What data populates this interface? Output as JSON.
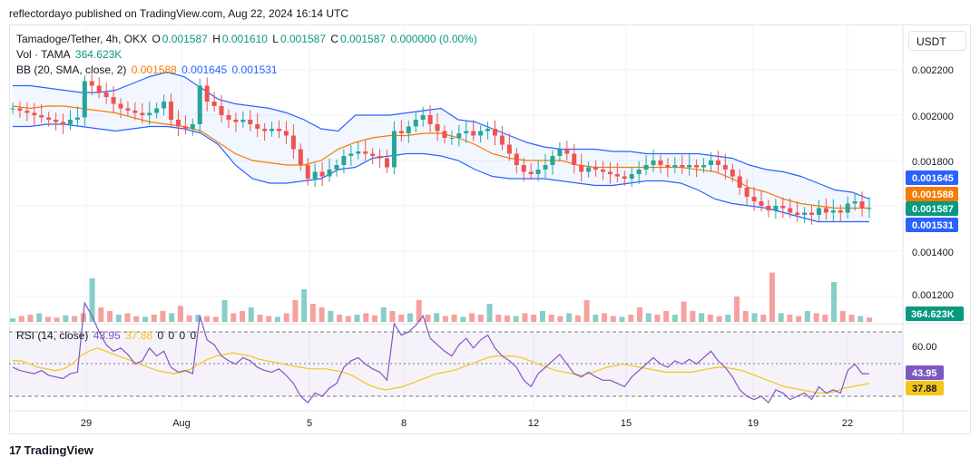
{
  "header": {
    "published_text": "reflectordayo published on TradingView.com, Aug 22, 2024 16:14 UTC"
  },
  "legend": {
    "symbol": "Tamadoge/Tether, 4h, OKX",
    "ohlc": {
      "o_label": "O",
      "o": "0.001587",
      "h_label": "H",
      "h": "0.001610",
      "l_label": "L",
      "l": "0.001587",
      "c_label": "C",
      "c": "0.001587",
      "change": "0.000000 (0.00%)"
    },
    "volume": {
      "label": "Vol · TAMA",
      "value": "364.623K"
    },
    "bb": {
      "label": "BB (20, SMA, close, 2)",
      "basis": "0.001588",
      "upper": "0.001645",
      "lower": "0.001531"
    },
    "rsi": {
      "label": "RSI (14, close)",
      "value": "43.95",
      "ma": "37.88",
      "extra": [
        "0",
        "0",
        "0",
        "0"
      ]
    }
  },
  "currency_button": {
    "label": "USDT"
  },
  "price_axis": {
    "ticks": [
      "0.002200",
      "0.002000",
      "0.001800",
      "0.001400",
      "0.001200"
    ],
    "tick_values": [
      0.0022,
      0.002,
      0.0018,
      0.0014,
      0.0012
    ],
    "badges": [
      {
        "text": "0.001645",
        "value": 0.001645,
        "color": "#2962ff"
      },
      {
        "text": "0.001588",
        "value": 0.001588,
        "color": "#f57c00"
      },
      {
        "text": "0.001587",
        "value": 0.001587,
        "color": "#089981"
      },
      {
        "text": "0.001531",
        "value": 0.001531,
        "color": "#2962ff"
      }
    ],
    "volume_badge": {
      "text": "364.623K",
      "color": "#089981"
    }
  },
  "rsi_axis": {
    "ticks": [
      "60.00"
    ],
    "badges": [
      {
        "text": "43.95",
        "value": 43.95,
        "color": "#7e57c2"
      },
      {
        "text": "37.88",
        "value": 37.88,
        "color": "#f5c518"
      }
    ]
  },
  "time_axis": {
    "labels": [
      "29",
      "Aug",
      "5",
      "8",
      "12",
      "15",
      "19",
      "22"
    ]
  },
  "footer": {
    "brand": "TradingView"
  },
  "colors": {
    "up": "#26a69a",
    "down": "#ef5350",
    "bb_band": "#2962ff",
    "bb_basis": "#f57c00",
    "rsi": "#7e57c2",
    "rsi_ma": "#f5c518"
  },
  "chart_data": {
    "type": "candlestick",
    "title": "Tamadoge/Tether, 4h, OKX",
    "ylim": [
      0.00132,
      0.00232
    ],
    "close_series_approx": [
      0.00203,
      0.00202,
      0.00201,
      0.002,
      0.00199,
      0.00198,
      0.00197,
      0.00196,
      0.00198,
      0.00199,
      0.00215,
      0.00213,
      0.0021,
      0.00208,
      0.00205,
      0.00203,
      0.00202,
      0.00201,
      0.002,
      0.00201,
      0.00203,
      0.00206,
      0.00198,
      0.00195,
      0.00194,
      0.00196,
      0.00213,
      0.00206,
      0.00204,
      0.002,
      0.00198,
      0.00197,
      0.00198,
      0.00196,
      0.00194,
      0.00193,
      0.00194,
      0.00193,
      0.00191,
      0.00185,
      0.00178,
      0.00172,
      0.00175,
      0.00173,
      0.00176,
      0.00178,
      0.00182,
      0.00183,
      0.00184,
      0.00183,
      0.00182,
      0.00181,
      0.00177,
      0.00193,
      0.00192,
      0.00195,
      0.00198,
      0.002,
      0.00196,
      0.00193,
      0.0019,
      0.0019,
      0.00192,
      0.00193,
      0.00191,
      0.00193,
      0.00194,
      0.00191,
      0.00187,
      0.00183,
      0.00178,
      0.00175,
      0.00174,
      0.00176,
      0.00178,
      0.00182,
      0.00185,
      0.00183,
      0.00178,
      0.00175,
      0.00177,
      0.00176,
      0.00175,
      0.00174,
      0.00173,
      0.00172,
      0.00174,
      0.00176,
      0.00178,
      0.0018,
      0.00178,
      0.00177,
      0.00178,
      0.00177,
      0.00178,
      0.00177,
      0.00178,
      0.0018,
      0.00178,
      0.00176,
      0.00173,
      0.00168,
      0.00164,
      0.00162,
      0.0016,
      0.00158,
      0.0016,
      0.00159,
      0.00157,
      0.00156,
      0.00157,
      0.00156,
      0.00159,
      0.00157,
      0.00158,
      0.00157,
      0.00161,
      0.00162,
      0.00159,
      0.00159
    ],
    "bb_upper_approx": [
      0.00213,
      0.00213,
      0.00212,
      0.00211,
      0.0021,
      0.0021,
      0.00211,
      0.00214,
      0.00217,
      0.00219,
      0.00217,
      0.00212,
      0.00207,
      0.00205,
      0.00204,
      0.00203,
      0.00201,
      0.00198,
      0.00194,
      0.00193,
      0.002,
      0.002,
      0.002,
      0.00201,
      0.00202,
      0.00203,
      0.00198,
      0.00197,
      0.00194,
      0.00191,
      0.00188,
      0.00186,
      0.00185,
      0.00185,
      0.00185,
      0.00184,
      0.00184,
      0.00183,
      0.00183,
      0.00183,
      0.00183,
      0.00182,
      0.00181,
      0.00178,
      0.00176,
      0.00175,
      0.00173,
      0.0017,
      0.00167,
      0.00166,
      0.00163
    ],
    "bb_basis_approx": [
      0.00204,
      0.00203,
      0.00204,
      0.00204,
      0.00203,
      0.00202,
      0.00201,
      0.00199,
      0.00197,
      0.00196,
      0.00195,
      0.00193,
      0.00188,
      0.00183,
      0.0018,
      0.00179,
      0.00178,
      0.00178,
      0.0018,
      0.00185,
      0.00188,
      0.0019,
      0.00191,
      0.00191,
      0.00192,
      0.00192,
      0.0019,
      0.00187,
      0.00183,
      0.00181,
      0.0018,
      0.0018,
      0.0018,
      0.00178,
      0.00177,
      0.00177,
      0.00177,
      0.00177,
      0.00177,
      0.00177,
      0.00176,
      0.00175,
      0.00172,
      0.00168,
      0.00166,
      0.00163,
      0.00161,
      0.0016,
      0.00159,
      0.00159,
      0.00159
    ],
    "bb_lower_approx": [
      0.00195,
      0.00195,
      0.00196,
      0.00196,
      0.00195,
      0.00194,
      0.00193,
      0.00194,
      0.00195,
      0.00195,
      0.00194,
      0.00192,
      0.00187,
      0.00178,
      0.00172,
      0.0017,
      0.0017,
      0.00171,
      0.00172,
      0.00176,
      0.00177,
      0.00181,
      0.00182,
      0.00183,
      0.00183,
      0.00182,
      0.0018,
      0.00176,
      0.00173,
      0.00172,
      0.00172,
      0.00172,
      0.00171,
      0.0017,
      0.00169,
      0.00169,
      0.0017,
      0.00171,
      0.00171,
      0.0017,
      0.00167,
      0.00163,
      0.00161,
      0.0016,
      0.00159,
      0.00157,
      0.00155,
      0.00153,
      0.00153,
      0.00153,
      0.00153
    ],
    "volume_relative": [
      0.05,
      0.08,
      0.1,
      0.12,
      0.07,
      0.06,
      0.09,
      0.08,
      0.12,
      0.6,
      0.2,
      0.15,
      0.1,
      0.12,
      0.08,
      0.07,
      0.1,
      0.15,
      0.12,
      0.22,
      0.09,
      0.1,
      0.08,
      0.07,
      0.3,
      0.12,
      0.15,
      0.2,
      0.1,
      0.08,
      0.07,
      0.12,
      0.3,
      0.45,
      0.25,
      0.2,
      0.15,
      0.1,
      0.08,
      0.1,
      0.12,
      0.09,
      0.2,
      0.15,
      0.1,
      0.12,
      0.3,
      0.1,
      0.12,
      0.08,
      0.1,
      0.07,
      0.12,
      0.1,
      0.25,
      0.1,
      0.09,
      0.08,
      0.12,
      0.1,
      0.15,
      0.1,
      0.08,
      0.12,
      0.09,
      0.3,
      0.1,
      0.12,
      0.08,
      0.07,
      0.1,
      0.2,
      0.12,
      0.1,
      0.15,
      0.1,
      0.28,
      0.15,
      0.12,
      0.1,
      0.08,
      0.1,
      0.35,
      0.15,
      0.12,
      0.1,
      0.68,
      0.12,
      0.1,
      0.08,
      0.15,
      0.12,
      0.1,
      0.55,
      0.15,
      0.1,
      0.08,
      0.06
    ],
    "rsi_series_approx": [
      48,
      46,
      45,
      44,
      46,
      43,
      42,
      41,
      44,
      45,
      88,
      80,
      70,
      62,
      58,
      60,
      56,
      50,
      52,
      60,
      55,
      58,
      48,
      45,
      46,
      44,
      80,
      65,
      62,
      55,
      52,
      50,
      54,
      52,
      48,
      46,
      45,
      47,
      43,
      38,
      30,
      26,
      32,
      30,
      35,
      38,
      48,
      52,
      54,
      50,
      47,
      45,
      40,
      75,
      68,
      70,
      74,
      80,
      66,
      62,
      58,
      55,
      62,
      66,
      60,
      65,
      68,
      60,
      55,
      52,
      48,
      40,
      36,
      44,
      48,
      52,
      56,
      50,
      44,
      42,
      45,
      42,
      40,
      40,
      38,
      36,
      42,
      46,
      50,
      54,
      50,
      48,
      52,
      50,
      53,
      50,
      54,
      58,
      52,
      48,
      42,
      34,
      30,
      28,
      30,
      26,
      34,
      32,
      28,
      30,
      32,
      28,
      36,
      32,
      34,
      32,
      46,
      50,
      44,
      44
    ],
    "rsi_ma_approx": [
      52,
      52,
      50,
      48,
      47,
      46,
      47,
      50,
      55,
      58,
      60,
      58,
      56,
      54,
      52,
      50,
      48,
      46,
      45,
      44,
      45,
      47,
      50,
      53,
      55,
      56,
      57,
      56,
      55,
      53,
      52,
      51,
      50,
      49,
      48,
      47,
      47,
      47,
      46,
      45,
      43,
      40,
      37,
      35,
      34,
      35,
      36,
      38,
      40,
      42,
      44,
      45,
      46,
      48,
      50,
      52,
      54,
      55,
      55,
      55,
      54,
      52,
      50,
      48,
      46,
      45,
      44,
      43,
      44,
      46,
      48,
      49,
      50,
      49,
      48,
      47,
      46,
      45,
      45,
      45,
      45,
      46,
      47,
      48,
      48,
      47,
      46,
      44,
      42,
      40,
      38,
      36,
      35,
      34,
      33,
      32,
      32,
      33,
      35,
      36,
      37,
      38
    ]
  }
}
